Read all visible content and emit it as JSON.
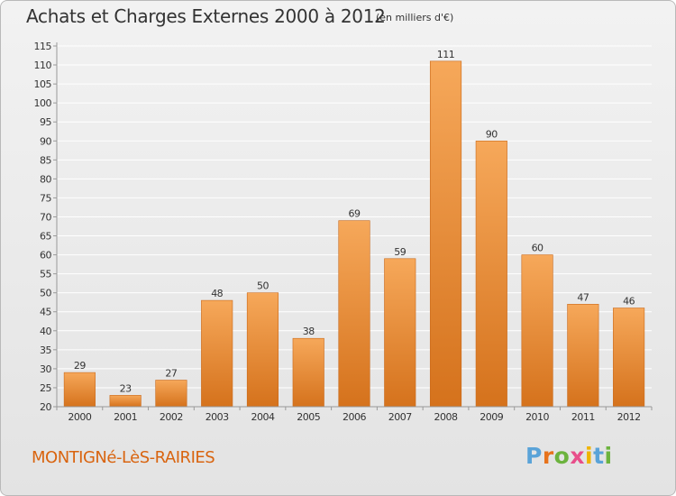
{
  "header": {
    "title": "Achats et Charges Externes 2000 à 2012",
    "subtitle": "(en milliers d'€)"
  },
  "footer": {
    "place": "MONTIGNé-LèS-RAIRIES",
    "logo": "Proxiti",
    "logo_colors": [
      "#5aa3d8",
      "#e7731c",
      "#6cb33e",
      "#e84e8a",
      "#f0b400",
      "#5aa3d8",
      "#6cb33e"
    ]
  },
  "colors": {
    "bar_light": "#f6a85a",
    "bar_dark": "#d5721c",
    "grid": "#ffffff",
    "axis": "#999999",
    "text": "#333333"
  },
  "chart_data": {
    "type": "bar",
    "title": "Achats et Charges Externes 2000 à 2012",
    "subtitle": "(en milliers d'€)",
    "categories": [
      "2000",
      "2001",
      "2002",
      "2003",
      "2004",
      "2005",
      "2006",
      "2007",
      "2008",
      "2009",
      "2010",
      "2011",
      "2012"
    ],
    "values": [
      29,
      23,
      27,
      48,
      50,
      38,
      69,
      59,
      111,
      90,
      60,
      47,
      46
    ],
    "ylim": [
      20,
      115
    ],
    "ytick_step": 5,
    "grid": true,
    "xlabel": "",
    "ylabel": ""
  }
}
